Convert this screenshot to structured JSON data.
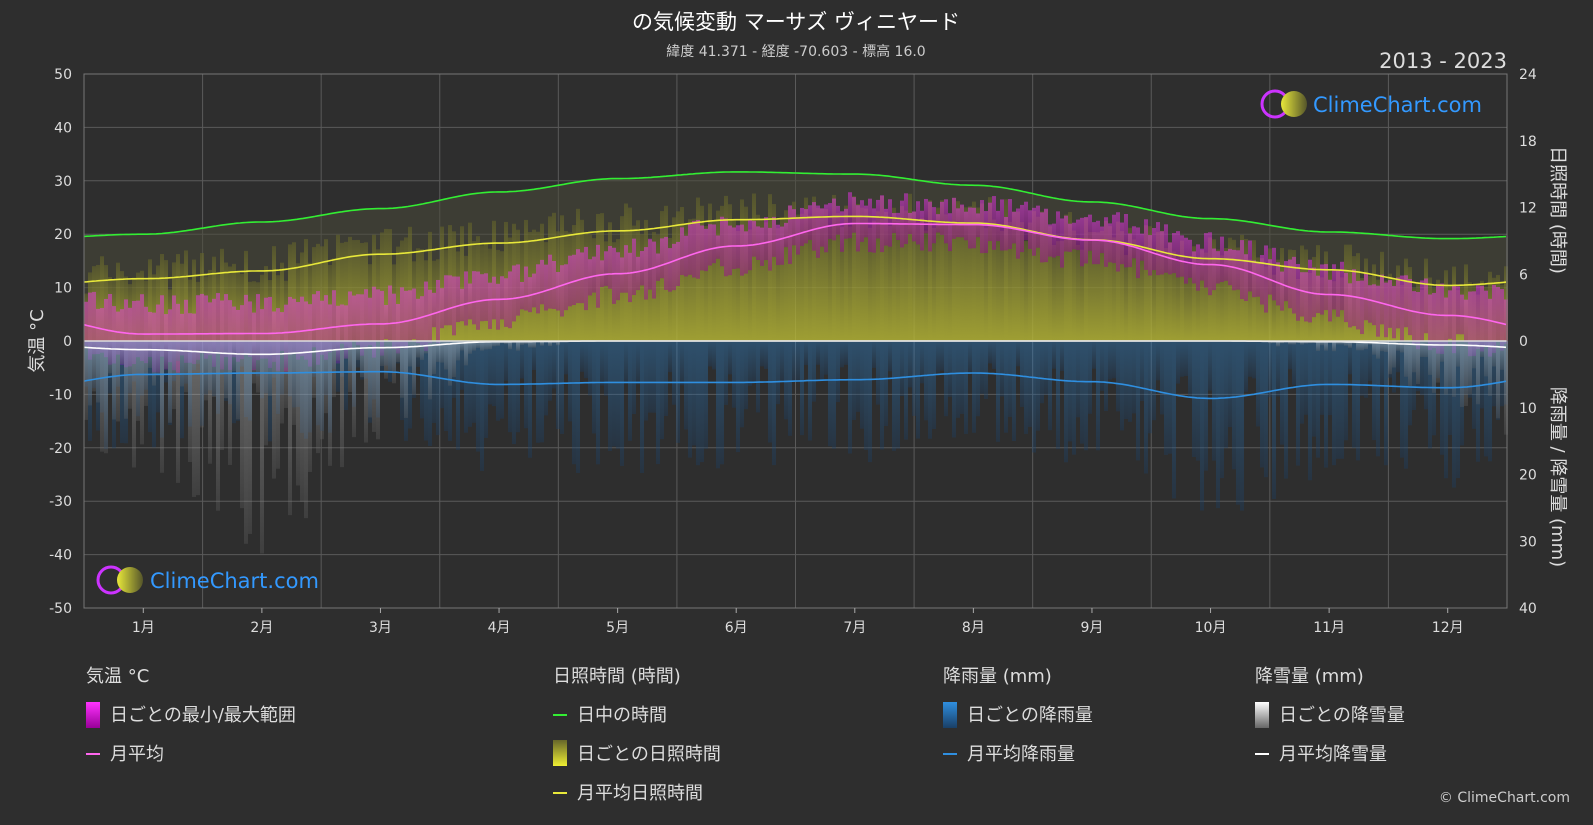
{
  "header": {
    "title": "の気候変動 マーサズ ヴィニヤード",
    "subtitle": "緯度 41.371 - 経度 -70.603 - 標高 16.0",
    "period": "2013 - 2023"
  },
  "brand": {
    "name": "ClimeChart.com",
    "copyright": "© ClimeChart.com"
  },
  "colors": {
    "background": "#2e2e2e",
    "daylight": "#33ee33",
    "sunshine": "#e8e83a",
    "temp_mean": "#ff66ee",
    "temp_range": "#e000e0",
    "rain": "#2f8fe0",
    "snow": "#ffffff"
  },
  "chart_data": {
    "type": "line",
    "categories": [
      "1月",
      "2月",
      "3月",
      "4月",
      "5月",
      "6月",
      "7月",
      "8月",
      "9月",
      "10月",
      "11月",
      "12月"
    ],
    "axes": {
      "left": {
        "label": "気温 °C",
        "range": [
          -50,
          50
        ],
        "ticks": [
          "50",
          "40",
          "30",
          "20",
          "10",
          "0",
          "-10",
          "-20",
          "-30",
          "-40",
          "-50"
        ]
      },
      "right_top": {
        "label": "日照時間 (時間)",
        "range": [
          0,
          24
        ],
        "ticks": [
          "24",
          "18",
          "12",
          "6",
          "0"
        ]
      },
      "right_bottom": {
        "label": "降雨量 / 降雪量 (mm)",
        "range": [
          0,
          40
        ],
        "ticks": [
          "10",
          "20",
          "30",
          "40"
        ]
      }
    },
    "series": [
      {
        "name": "日中の時間",
        "unit": "hours",
        "values": [
          9.6,
          10.7,
          11.9,
          13.4,
          14.6,
          15.2,
          15.0,
          14.0,
          12.5,
          11.0,
          9.8,
          9.2
        ]
      },
      {
        "name": "月平均日照時間",
        "unit": "hours",
        "values": [
          5.6,
          6.3,
          7.8,
          8.8,
          9.9,
          10.9,
          11.2,
          10.6,
          9.1,
          7.4,
          6.4,
          5.0
        ]
      },
      {
        "name": "月平均",
        "unit": "°C",
        "values": [
          1.3,
          1.4,
          3.2,
          7.8,
          12.6,
          17.8,
          22.0,
          21.8,
          18.9,
          14.3,
          8.7,
          4.8
        ]
      },
      {
        "name": "日ごとの最小/最大範囲",
        "unit": "°C",
        "min": [
          -4.5,
          -4.0,
          -1.5,
          3.5,
          8.5,
          14.0,
          18.5,
          18.5,
          15.0,
          10.0,
          4.0,
          -0.5
        ],
        "max": [
          7.0,
          7.0,
          8.5,
          12.5,
          17.0,
          22.0,
          26.0,
          25.5,
          23.0,
          18.5,
          13.0,
          9.5
        ]
      },
      {
        "name": "月平均降雨量",
        "unit": "mm",
        "values": [
          5.0,
          4.8,
          4.6,
          6.5,
          6.2,
          6.2,
          5.8,
          4.8,
          6.1,
          8.6,
          6.5,
          7.0
        ]
      },
      {
        "name": "月平均降雪量",
        "unit": "mm",
        "values": [
          1.3,
          2.0,
          1.0,
          0.1,
          0.0,
          0.0,
          0.0,
          0.0,
          0.0,
          0.0,
          0.1,
          0.6
        ]
      }
    ],
    "grid": true
  },
  "legend": {
    "groups": [
      {
        "title": "気温 °C",
        "items": [
          {
            "label": "日ごとの最小/最大範囲",
            "icon": "temp-range-swatch"
          },
          {
            "label": "月平均",
            "icon": "temp-mean-line"
          }
        ]
      },
      {
        "title": "日照時間 (時間)",
        "items": [
          {
            "label": "日中の時間",
            "icon": "daylight-line"
          },
          {
            "label": "日ごとの日照時間",
            "icon": "sunshine-swatch"
          },
          {
            "label": "月平均日照時間",
            "icon": "sunshine-mean-line"
          }
        ]
      },
      {
        "title": "降雨量 (mm)",
        "items": [
          {
            "label": "日ごとの降雨量",
            "icon": "rain-swatch"
          },
          {
            "label": "月平均降雨量",
            "icon": "rain-mean-line"
          }
        ]
      },
      {
        "title": "降雪量 (mm)",
        "items": [
          {
            "label": "日ごとの降雪量",
            "icon": "snow-swatch"
          },
          {
            "label": "月平均降雪量",
            "icon": "snow-mean-line"
          }
        ]
      }
    ]
  }
}
